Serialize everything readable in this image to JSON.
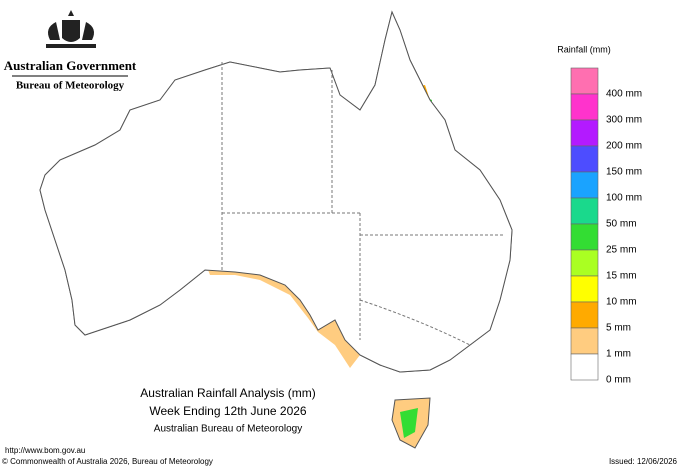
{
  "header": {
    "government": "Australian Government",
    "bureau": "Bureau of Meteorology"
  },
  "legend": {
    "title": "Rainfall (mm)",
    "swatches": [
      "#ff6fb0",
      "#ff33cc",
      "#b31aff",
      "#4d4dff",
      "#1aa3ff",
      "#1ad98c",
      "#33dd33",
      "#aaff22",
      "#ffff00",
      "#ffaa00",
      "#ffcc80",
      "#ffffff"
    ],
    "labels": [
      "400 mm",
      "300 mm",
      "200 mm",
      "150 mm",
      "100 mm",
      "50 mm",
      "25 mm",
      "15 mm",
      "10 mm",
      "5 mm",
      "1 mm",
      "0 mm"
    ]
  },
  "caption": {
    "title": "Australian Rainfall Analysis (mm)",
    "subtitle": "Week Ending 12th June 2026",
    "source": "Australian Bureau of Meteorology"
  },
  "footer": {
    "url": "http://www.bom.gov.au",
    "copyright": "© Commonwealth of Australia 2026, Bureau of Meteorology",
    "issued": "Issued: 12/06/2026"
  }
}
